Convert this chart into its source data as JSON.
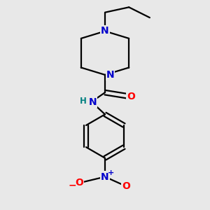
{
  "bg_color": "#e8e8e8",
  "bond_color": "#000000",
  "N_color": "#0000cc",
  "O_color": "#ff0000",
  "H_color": "#008080",
  "line_width": 1.6,
  "font_size_atom": 10,
  "fig_size": [
    3.0,
    3.0
  ],
  "dpi": 100,
  "xlim": [
    0.15,
    0.85
  ],
  "ylim": [
    0.02,
    1.02
  ]
}
